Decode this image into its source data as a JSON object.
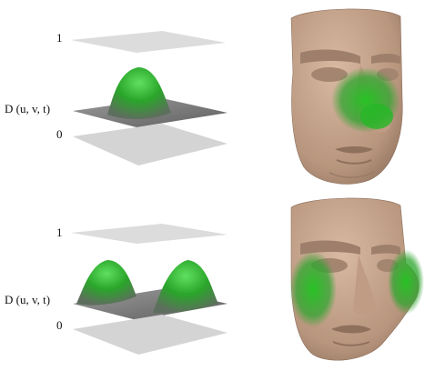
{
  "panels": [
    {
      "id": "top",
      "label_one": "1",
      "label_d": "D (u, v, t)",
      "label_zero": "0",
      "bump_count": 1
    },
    {
      "id": "bottom",
      "label_one": "1",
      "label_d": "D (u, v, t)",
      "label_zero": "0",
      "bump_count": 2
    }
  ],
  "colors": {
    "plane_light": "#d9d9d9",
    "plane_gray": "#7a7a7a",
    "bump_green": "#2bb52b",
    "skin": "#c7a58c",
    "skin_dark": "#9b7d69"
  }
}
